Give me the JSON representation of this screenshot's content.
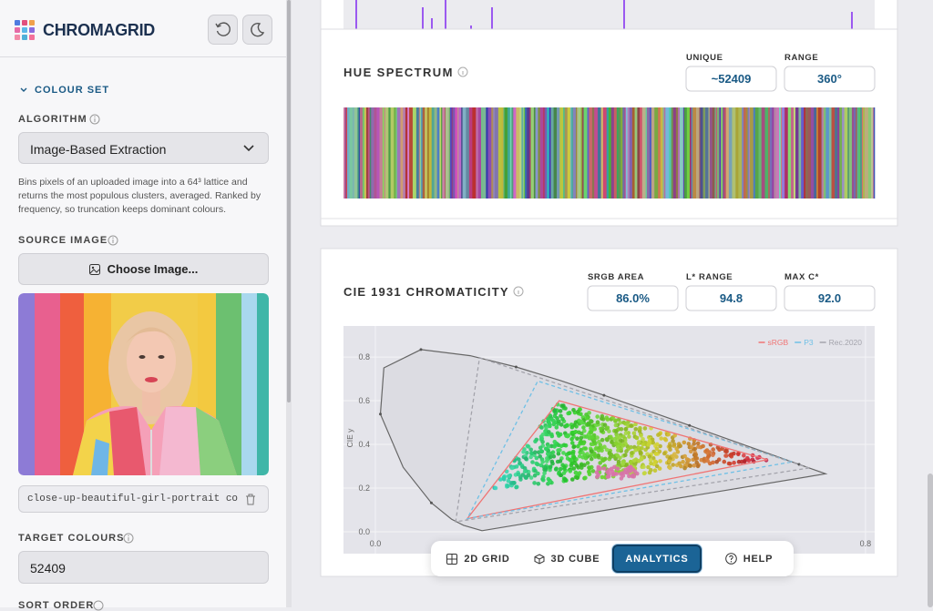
{
  "app": {
    "brand": "CHROMAGRID"
  },
  "sidebar": {
    "section": "COLOUR SET",
    "algorithm_label": "ALGORITHM",
    "algorithm": "Image-Based Extraction",
    "algorithm_description": "Bins pixels of an uploaded image into a 64³ lattice and returns the most populous clusters, averaged. Ranked by frequency, so truncation keeps dominant colours.",
    "source_label": "SOURCE IMAGE",
    "choose_button": "Choose Image...",
    "filename": "close-up-beautiful-girl-portrait co...",
    "target_label": "TARGET COLOURS",
    "target_value": "52409",
    "sort_label": "SORT ORDER"
  },
  "hue_spectrum": {
    "title": "HUE SPECTRUM",
    "stats": [
      {
        "label": "UNIQUE",
        "value": "~52409"
      },
      {
        "label": "RANGE",
        "value": "360°"
      }
    ]
  },
  "chromaticity_stats": [
    {
      "label": "SRGB AREA",
      "value": "86.0%"
    },
    {
      "label": "L* RANGE",
      "value": "94.8"
    },
    {
      "label": "MAX C*",
      "value": "92.0"
    }
  ],
  "chart_data": {
    "type": "line",
    "title": "CIE 1931 CHROMATICITY",
    "y_label": "CIE y",
    "xlim": [
      -0.052,
      0.815
    ],
    "ylim": [
      -0.1,
      0.942
    ],
    "xticks": [
      {
        "value": 0,
        "label": "0.0"
      },
      0.8
    ],
    "yticks": [
      {
        "value": 0,
        "label": "0.0"
      },
      0.2,
      0.4,
      0.6,
      0.8
    ],
    "grid": true,
    "legend": "top-right",
    "series": [
      {
        "name": "sRGB",
        "color": "#f07474",
        "line_style": "solid",
        "x": [
          0.64,
          0.3,
          0.15
        ],
        "y": [
          0.33,
          0.6,
          0.06
        ]
      },
      {
        "name": "P3",
        "color": "#6fc0e6",
        "line_style": "dashed",
        "x": [
          0.68,
          0.265,
          0.15
        ],
        "y": [
          0.32,
          0.69,
          0.06
        ]
      },
      {
        "name": "Rec.2020",
        "color": "#a4a4ac",
        "line_style": "dashed",
        "x": [
          0.708,
          0.17,
          0.131
        ],
        "y": [
          0.292,
          0.797,
          0.046
        ]
      }
    ]
  },
  "nav": {
    "items": [
      "2D GRID",
      "3D CUBE",
      "ANALYTICS",
      "HELP"
    ],
    "active": 2
  }
}
